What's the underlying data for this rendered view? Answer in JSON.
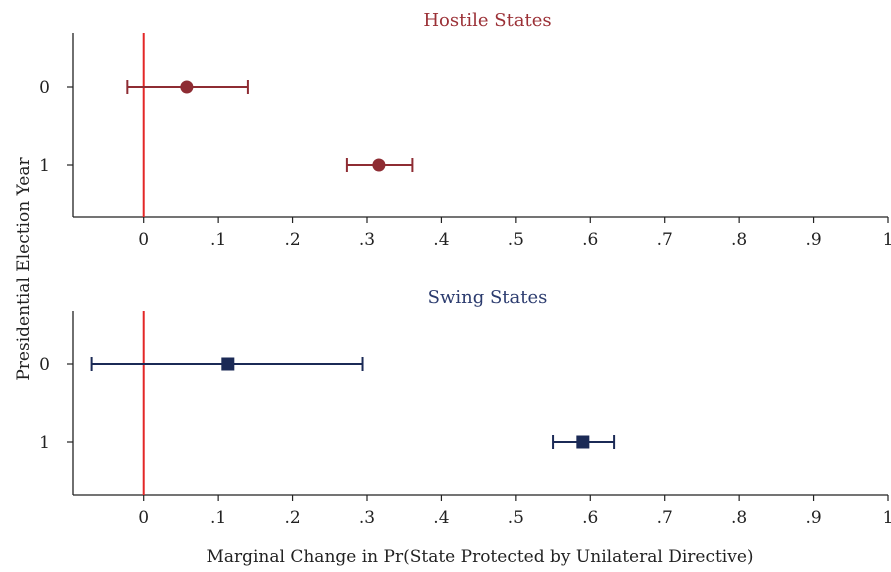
{
  "chart_data": {
    "type": "scatter",
    "subtype": "coefficient-plot-with-confidence-intervals",
    "ylabel": "Presidential Election Year",
    "xlabel": "Marginal Change in Pr(State Protected by Unilateral Directive)",
    "xlim": [
      -0.095,
      1.0
    ],
    "xticks": [
      "0",
      ".1",
      ".2",
      ".3",
      ".4",
      ".5",
      ".6",
      ".7",
      ".8",
      ".9",
      "1"
    ],
    "xtick_values": [
      0,
      0.1,
      0.2,
      0.3,
      0.4,
      0.5,
      0.6,
      0.7,
      0.8,
      0.9,
      1.0
    ],
    "reference_line_x": 0,
    "reference_line_color": "#e32626",
    "panels": [
      {
        "title": "Hostile States",
        "title_color": "#9b3036",
        "marker": "circle",
        "color": "#8e2c33",
        "categories": [
          "0",
          "1"
        ],
        "points": [
          {
            "category": "0",
            "estimate": 0.058,
            "ci_low": -0.022,
            "ci_high": 0.14
          },
          {
            "category": "1",
            "estimate": 0.316,
            "ci_low": 0.273,
            "ci_high": 0.361
          }
        ]
      },
      {
        "title": "Swing States",
        "title_color": "#2b3b6e",
        "marker": "square",
        "color": "#1b2a56",
        "categories": [
          "0",
          "1"
        ],
        "points": [
          {
            "category": "0",
            "estimate": 0.113,
            "ci_low": -0.07,
            "ci_high": 0.294
          },
          {
            "category": "1",
            "estimate": 0.59,
            "ci_low": 0.55,
            "ci_high": 0.632
          }
        ]
      }
    ]
  }
}
